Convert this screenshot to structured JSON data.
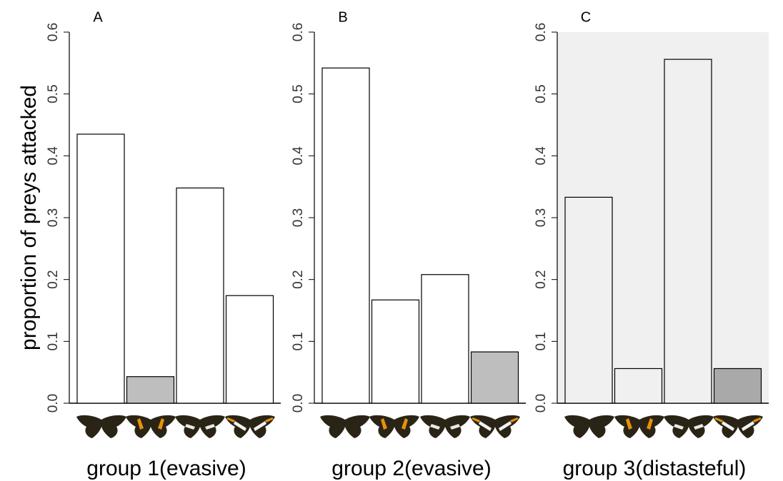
{
  "chart_data": [
    {
      "type": "bar",
      "title": "A",
      "ylabel": "proportion of preys attacked",
      "xlabel": "group 1(evasive)",
      "categories": [
        null,
        null,
        null,
        null
      ],
      "values": [
        0.435,
        0.043,
        0.348,
        0.174
      ],
      "colors": [
        "#ffffff",
        "#bebebe",
        "#ffffff",
        "#ffffff"
      ],
      "background": "#ffffff",
      "ylim": [
        0,
        0.6
      ],
      "yticks": [
        {
          "value": 0,
          "label": "0.0"
        },
        0.1,
        0.2,
        0.3,
        0.4,
        0.5,
        0.6
      ]
    },
    {
      "type": "bar",
      "title": "B",
      "xlabel": "group 2(evasive)",
      "categories": [
        null,
        null,
        null,
        null
      ],
      "values": [
        0.542,
        0.167,
        0.208,
        0.083
      ],
      "colors": [
        "#ffffff",
        "#ffffff",
        "#ffffff",
        "#bebebe"
      ],
      "background": "#ffffff",
      "ylim": [
        0,
        0.6
      ],
      "yticks": [
        {
          "value": 0,
          "label": "0.0"
        },
        0.1,
        0.2,
        0.3,
        0.4,
        0.5,
        0.6
      ]
    },
    {
      "type": "bar",
      "title": "C",
      "xlabel": "group 3(distasteful)",
      "categories": [
        null,
        null,
        null,
        null
      ],
      "values": [
        0.333,
        0.056,
        0.556,
        0.056
      ],
      "colors": [
        "#f0f0f0",
        "#f0f0f0",
        "#f0f0f0",
        "#a9a9a9"
      ],
      "background": "#f0f0f0",
      "ylim": [
        0,
        0.6
      ],
      "yticks": [
        {
          "value": 0,
          "label": "0.0"
        },
        0.1,
        0.2,
        0.3,
        0.4,
        0.5,
        0.6
      ]
    }
  ]
}
